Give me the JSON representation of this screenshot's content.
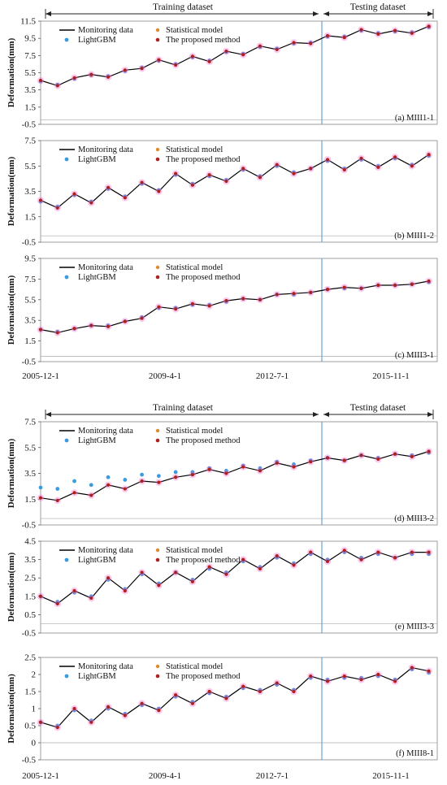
{
  "groups": [
    {
      "training_label": "Training dataset",
      "testing_label": "Testing dataset"
    },
    {
      "training_label": "Training dataset",
      "testing_label": "Testing dataset"
    }
  ],
  "legend": {
    "monitoring": "Monitoring data",
    "lightgbm": "LightGBM",
    "statistical": "Statistical model",
    "proposed": "The proposed method"
  },
  "x_ticks": [
    "2005-12-1",
    "2009-4-1",
    "2012-7-1",
    "2015-11-1"
  ],
  "colors": {
    "monitoring": "#000000",
    "lightgbm": "#3a9be0",
    "statistical": "#e08a2a",
    "proposed": "#b02020",
    "proposed_glow": "#f06ad0",
    "divider": "#5b9bd5",
    "zero_line": "#aaaaaa"
  },
  "chart_data": [
    {
      "type": "line",
      "panel": "(a) MIII1-1",
      "ylabel": "Deformation(mm)",
      "xlim": [
        "2005-12-1",
        "2017-9-1"
      ],
      "split": "2014-1-1",
      "ylim": [
        -0.5,
        11.5
      ],
      "yticks": [
        -0.5,
        1.5,
        3.5,
        5.5,
        7.5,
        9.5,
        11.5
      ],
      "x": [
        "2005-12-1",
        "2006-6-1",
        "2006-12-1",
        "2007-6-1",
        "2007-12-1",
        "2008-6-1",
        "2008-12-1",
        "2009-6-1",
        "2009-12-1",
        "2010-6-1",
        "2010-12-1",
        "2011-6-1",
        "2011-12-1",
        "2012-6-1",
        "2012-12-1",
        "2013-6-1",
        "2013-12-1",
        "2014-6-1",
        "2014-12-1",
        "2015-6-1",
        "2015-12-1",
        "2016-6-1",
        "2016-12-1",
        "2017-6-1"
      ],
      "series": [
        {
          "name": "Monitoring data",
          "values": [
            4.6,
            4.0,
            4.9,
            5.3,
            5.0,
            5.8,
            6.0,
            7.0,
            6.4,
            7.4,
            6.8,
            8.0,
            7.6,
            8.6,
            8.2,
            9.0,
            8.9,
            9.8,
            9.6,
            10.5,
            10.0,
            10.4,
            10.1,
            10.9
          ]
        },
        {
          "name": "LightGBM",
          "values": [
            4.5,
            4.1,
            4.8,
            5.2,
            5.1,
            5.7,
            6.1,
            6.9,
            6.5,
            7.3,
            6.9,
            7.9,
            7.7,
            8.5,
            8.3,
            8.9,
            9.0,
            9.7,
            9.7,
            10.4,
            10.1,
            10.3,
            10.2,
            10.8
          ]
        },
        {
          "name": "Statistical model",
          "values": [
            4.6,
            4.0,
            4.9,
            5.2,
            5.0,
            5.8,
            6.0,
            7.0,
            6.4,
            7.4,
            6.8,
            8.0,
            7.6,
            8.6,
            8.2,
            9.0,
            8.9,
            9.8,
            9.6,
            10.5,
            10.0,
            10.4,
            10.1,
            10.9
          ]
        },
        {
          "name": "The proposed method",
          "values": [
            4.6,
            4.0,
            4.9,
            5.3,
            5.0,
            5.8,
            6.0,
            7.0,
            6.4,
            7.4,
            6.8,
            8.0,
            7.6,
            8.6,
            8.2,
            9.0,
            8.9,
            9.8,
            9.6,
            10.5,
            10.0,
            10.4,
            10.1,
            10.9
          ]
        }
      ]
    },
    {
      "type": "line",
      "panel": "(b) MIII1-2",
      "ylabel": "Deformation(mm)",
      "xlim": [
        "2005-12-1",
        "2017-9-1"
      ],
      "split": "2014-1-1",
      "ylim": [
        -0.5,
        7.5
      ],
      "yticks": [
        -0.5,
        1.5,
        3.5,
        5.5,
        7.5
      ],
      "x": [
        "2005-12-1",
        "2006-6-1",
        "2006-12-1",
        "2007-6-1",
        "2007-12-1",
        "2008-6-1",
        "2008-12-1",
        "2009-6-1",
        "2009-12-1",
        "2010-6-1",
        "2010-12-1",
        "2011-6-1",
        "2011-12-1",
        "2012-6-1",
        "2012-12-1",
        "2013-6-1",
        "2013-12-1",
        "2014-6-1",
        "2014-12-1",
        "2015-6-1",
        "2015-12-1",
        "2016-6-1",
        "2016-12-1",
        "2017-6-1"
      ],
      "series": [
        {
          "name": "Monitoring data",
          "values": [
            2.8,
            2.2,
            3.3,
            2.6,
            3.8,
            3.0,
            4.2,
            3.5,
            4.9,
            4.0,
            4.8,
            4.3,
            5.3,
            4.6,
            5.6,
            4.9,
            5.3,
            6.0,
            5.2,
            6.1,
            5.4,
            6.2,
            5.5,
            6.4
          ]
        },
        {
          "name": "LightGBM",
          "values": [
            2.7,
            2.3,
            3.2,
            2.7,
            3.7,
            3.1,
            4.1,
            3.6,
            4.8,
            4.1,
            4.7,
            4.4,
            5.2,
            4.7,
            5.5,
            5.0,
            5.3,
            5.9,
            5.3,
            6.0,
            5.5,
            6.1,
            5.6,
            6.3
          ]
        },
        {
          "name": "Statistical model",
          "values": [
            2.8,
            2.2,
            3.3,
            2.6,
            3.8,
            3.0,
            4.2,
            3.5,
            4.9,
            4.0,
            4.8,
            4.3,
            5.3,
            4.6,
            5.6,
            4.9,
            5.3,
            6.0,
            5.2,
            6.1,
            5.4,
            6.2,
            5.5,
            6.4
          ]
        },
        {
          "name": "The proposed method",
          "values": [
            2.8,
            2.2,
            3.3,
            2.6,
            3.8,
            3.0,
            4.2,
            3.5,
            4.9,
            4.0,
            4.8,
            4.3,
            5.3,
            4.6,
            5.6,
            4.9,
            5.3,
            6.0,
            5.2,
            6.1,
            5.4,
            6.2,
            5.5,
            6.4
          ]
        }
      ]
    },
    {
      "type": "line",
      "panel": "(c) MIII3-1",
      "ylabel": "Deformation(mm)",
      "xlim": [
        "2005-12-1",
        "2017-9-1"
      ],
      "split": "2014-1-1",
      "ylim": [
        -0.5,
        9.5
      ],
      "yticks": [
        -0.5,
        1.5,
        3.5,
        5.5,
        7.5,
        9.5
      ],
      "x": [
        "2005-12-1",
        "2006-6-1",
        "2006-12-1",
        "2007-6-1",
        "2007-12-1",
        "2008-6-1",
        "2008-12-1",
        "2009-6-1",
        "2009-12-1",
        "2010-6-1",
        "2010-12-1",
        "2011-6-1",
        "2011-12-1",
        "2012-6-1",
        "2012-12-1",
        "2013-6-1",
        "2013-12-1",
        "2014-6-1",
        "2014-12-1",
        "2015-6-1",
        "2015-12-1",
        "2016-6-1",
        "2016-12-1",
        "2017-6-1"
      ],
      "series": [
        {
          "name": "Monitoring data",
          "values": [
            2.6,
            2.3,
            2.7,
            3.0,
            2.9,
            3.4,
            3.7,
            4.8,
            4.6,
            5.1,
            4.9,
            5.4,
            5.6,
            5.5,
            6.0,
            6.1,
            6.2,
            6.5,
            6.7,
            6.6,
            6.9,
            6.9,
            7.0,
            7.3
          ]
        },
        {
          "name": "LightGBM",
          "values": [
            2.6,
            2.4,
            2.7,
            3.0,
            3.0,
            3.4,
            3.8,
            4.7,
            4.7,
            5.0,
            5.0,
            5.3,
            5.6,
            5.5,
            6.0,
            6.0,
            6.2,
            6.5,
            6.6,
            6.6,
            6.9,
            6.9,
            7.0,
            7.2
          ]
        },
        {
          "name": "Statistical model",
          "values": [
            2.6,
            2.3,
            2.7,
            3.0,
            2.9,
            3.4,
            3.7,
            4.8,
            4.6,
            5.1,
            4.9,
            5.4,
            5.6,
            5.5,
            6.0,
            6.1,
            6.2,
            6.5,
            6.7,
            6.6,
            6.9,
            6.9,
            7.0,
            7.3
          ]
        },
        {
          "name": "The proposed method",
          "values": [
            2.6,
            2.3,
            2.7,
            3.0,
            2.9,
            3.4,
            3.7,
            4.8,
            4.6,
            5.1,
            4.9,
            5.4,
            5.6,
            5.5,
            6.0,
            6.1,
            6.2,
            6.5,
            6.7,
            6.6,
            6.9,
            6.9,
            7.0,
            7.3
          ]
        }
      ]
    },
    {
      "type": "line",
      "panel": "(d) MIII3-2",
      "ylabel": "Deformation(mm)",
      "xlim": [
        "2005-12-1",
        "2017-9-1"
      ],
      "split": "2014-1-1",
      "ylim": [
        -0.5,
        7.5
      ],
      "yticks": [
        -0.5,
        1.5,
        3.5,
        5.5,
        7.5
      ],
      "x": [
        "2005-12-1",
        "2006-6-1",
        "2006-12-1",
        "2007-6-1",
        "2007-12-1",
        "2008-6-1",
        "2008-12-1",
        "2009-6-1",
        "2009-12-1",
        "2010-6-1",
        "2010-12-1",
        "2011-6-1",
        "2011-12-1",
        "2012-6-1",
        "2012-12-1",
        "2013-6-1",
        "2013-12-1",
        "2014-6-1",
        "2014-12-1",
        "2015-6-1",
        "2015-12-1",
        "2016-6-1",
        "2016-12-1",
        "2017-6-1"
      ],
      "series": [
        {
          "name": "Monitoring data",
          "values": [
            1.6,
            1.4,
            2.0,
            1.8,
            2.6,
            2.3,
            2.9,
            2.8,
            3.2,
            3.4,
            3.8,
            3.5,
            4.0,
            3.7,
            4.3,
            4.0,
            4.4,
            4.7,
            4.5,
            4.9,
            4.6,
            5.0,
            4.8,
            5.2
          ]
        },
        {
          "name": "LightGBM",
          "values": [
            2.4,
            2.3,
            2.9,
            2.6,
            3.2,
            3.0,
            3.4,
            3.3,
            3.6,
            3.6,
            3.9,
            3.7,
            4.1,
            3.9,
            4.4,
            4.2,
            4.5,
            4.7,
            4.5,
            4.9,
            4.7,
            5.0,
            4.9,
            5.1
          ]
        },
        {
          "name": "Statistical model",
          "values": [
            1.6,
            1.4,
            2.0,
            1.8,
            2.6,
            2.3,
            2.9,
            2.8,
            3.2,
            3.4,
            3.8,
            3.5,
            4.0,
            3.7,
            4.3,
            4.0,
            4.4,
            4.7,
            4.5,
            4.9,
            4.6,
            5.0,
            4.8,
            5.2
          ]
        },
        {
          "name": "The proposed method",
          "values": [
            1.6,
            1.4,
            2.0,
            1.8,
            2.6,
            2.3,
            2.9,
            2.8,
            3.2,
            3.4,
            3.8,
            3.5,
            4.0,
            3.7,
            4.3,
            4.0,
            4.4,
            4.7,
            4.5,
            4.9,
            4.6,
            5.0,
            4.8,
            5.2
          ]
        }
      ]
    },
    {
      "type": "line",
      "panel": "(e) MIII3-3",
      "ylabel": "Deformation(mm)",
      "xlim": [
        "2005-12-1",
        "2017-9-1"
      ],
      "split": "2014-1-1",
      "ylim": [
        -0.5,
        4.5
      ],
      "yticks": [
        -0.5,
        0.5,
        1.5,
        2.5,
        3.5,
        4.5
      ],
      "x": [
        "2005-12-1",
        "2006-6-1",
        "2006-12-1",
        "2007-6-1",
        "2007-12-1",
        "2008-6-1",
        "2008-12-1",
        "2009-6-1",
        "2009-12-1",
        "2010-6-1",
        "2010-12-1",
        "2011-6-1",
        "2011-12-1",
        "2012-6-1",
        "2012-12-1",
        "2013-6-1",
        "2013-12-1",
        "2014-6-1",
        "2014-12-1",
        "2015-6-1",
        "2015-12-1",
        "2016-6-1",
        "2016-12-1",
        "2017-6-1"
      ],
      "series": [
        {
          "name": "Monitoring data",
          "values": [
            1.5,
            1.1,
            1.8,
            1.4,
            2.5,
            1.8,
            2.8,
            2.1,
            2.8,
            2.3,
            3.1,
            2.7,
            3.5,
            3.0,
            3.7,
            3.2,
            3.9,
            3.4,
            4.0,
            3.5,
            3.9,
            3.6,
            3.9,
            3.9
          ]
        },
        {
          "name": "LightGBM",
          "values": [
            1.5,
            1.2,
            1.7,
            1.5,
            2.4,
            1.9,
            2.7,
            2.2,
            2.8,
            2.4,
            3.0,
            2.8,
            3.4,
            3.1,
            3.6,
            3.3,
            3.8,
            3.5,
            3.9,
            3.6,
            3.8,
            3.6,
            3.8,
            3.8
          ]
        },
        {
          "name": "Statistical model",
          "values": [
            1.5,
            1.1,
            1.8,
            1.4,
            2.5,
            1.8,
            2.8,
            2.1,
            2.8,
            2.3,
            3.1,
            2.7,
            3.5,
            3.0,
            3.7,
            3.2,
            3.9,
            3.4,
            4.0,
            3.5,
            3.9,
            3.6,
            3.9,
            3.9
          ]
        },
        {
          "name": "The proposed method",
          "values": [
            1.5,
            1.1,
            1.8,
            1.4,
            2.5,
            1.8,
            2.8,
            2.1,
            2.8,
            2.3,
            3.1,
            2.7,
            3.5,
            3.0,
            3.7,
            3.2,
            3.9,
            3.4,
            4.0,
            3.5,
            3.9,
            3.6,
            3.9,
            3.9
          ]
        }
      ]
    },
    {
      "type": "line",
      "panel": "(f) MIII8-1",
      "ylabel": "Deformation(mm)",
      "xlim": [
        "2005-12-1",
        "2017-9-1"
      ],
      "split": "2014-1-1",
      "ylim": [
        -0.5,
        2.5
      ],
      "yticks": [
        -0.5,
        0,
        0.5,
        1,
        1.5,
        2,
        2.5
      ],
      "x": [
        "2005-12-1",
        "2006-6-1",
        "2006-12-1",
        "2007-6-1",
        "2007-12-1",
        "2008-6-1",
        "2008-12-1",
        "2009-6-1",
        "2009-12-1",
        "2010-6-1",
        "2010-12-1",
        "2011-6-1",
        "2011-12-1",
        "2012-6-1",
        "2012-12-1",
        "2013-6-1",
        "2013-12-1",
        "2014-6-1",
        "2014-12-1",
        "2015-6-1",
        "2015-12-1",
        "2016-6-1",
        "2016-12-1",
        "2017-6-1"
      ],
      "series": [
        {
          "name": "Monitoring data",
          "values": [
            0.6,
            0.45,
            1.0,
            0.6,
            1.05,
            0.8,
            1.15,
            0.95,
            1.4,
            1.15,
            1.5,
            1.3,
            1.65,
            1.5,
            1.75,
            1.5,
            1.95,
            1.8,
            1.95,
            1.85,
            2.0,
            1.8,
            2.2,
            2.1
          ]
        },
        {
          "name": "LightGBM",
          "values": [
            0.6,
            0.5,
            0.95,
            0.65,
            1.0,
            0.85,
            1.1,
            1.0,
            1.35,
            1.2,
            1.45,
            1.35,
            1.6,
            1.55,
            1.7,
            1.55,
            1.9,
            1.85,
            1.9,
            1.9,
            1.95,
            1.85,
            2.15,
            2.05
          ]
        },
        {
          "name": "Statistical model",
          "values": [
            0.6,
            0.45,
            1.0,
            0.6,
            1.05,
            0.8,
            1.15,
            0.95,
            1.4,
            1.15,
            1.5,
            1.3,
            1.65,
            1.5,
            1.75,
            1.5,
            1.95,
            1.8,
            1.95,
            1.85,
            2.0,
            1.8,
            2.2,
            2.1
          ]
        },
        {
          "name": "The proposed method",
          "values": [
            0.6,
            0.45,
            1.0,
            0.6,
            1.05,
            0.8,
            1.15,
            0.95,
            1.4,
            1.15,
            1.5,
            1.3,
            1.65,
            1.5,
            1.75,
            1.5,
            1.95,
            1.8,
            1.95,
            1.85,
            2.0,
            1.8,
            2.2,
            2.1
          ]
        }
      ]
    }
  ]
}
